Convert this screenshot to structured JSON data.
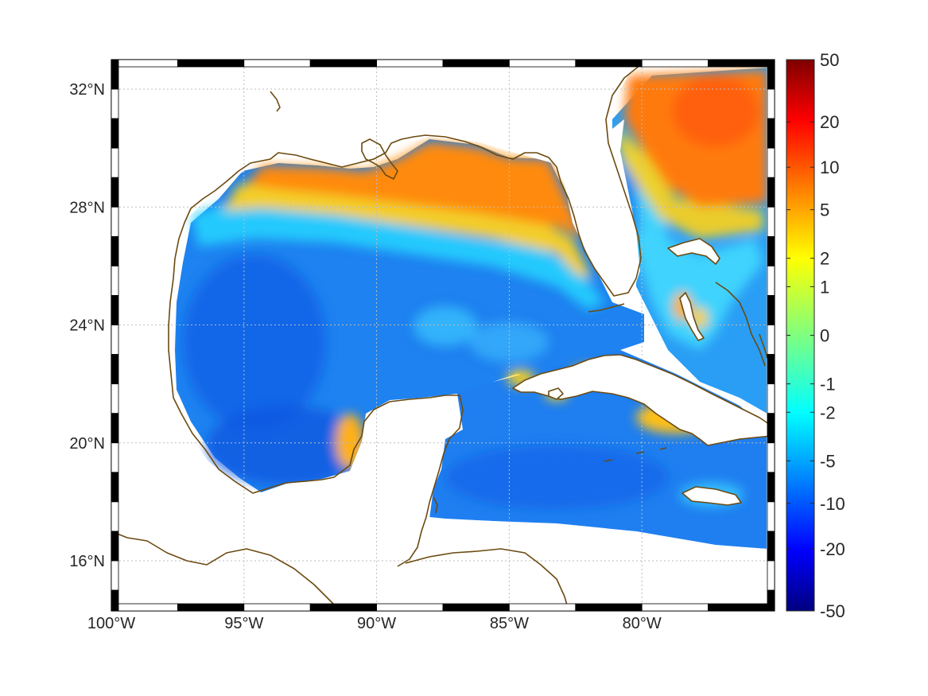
{
  "map": {
    "lon_range": [
      -100,
      -75
    ],
    "lat_range": [
      14.3,
      33
    ],
    "x_ticks": [
      {
        "lon": -100,
        "label": "100°W"
      },
      {
        "lon": -95,
        "label": "95°W"
      },
      {
        "lon": -90,
        "label": "90°W"
      },
      {
        "lon": -85,
        "label": "85°W"
      },
      {
        "lon": -80,
        "label": "80°W"
      }
    ],
    "y_ticks": [
      {
        "lat": 32,
        "label": "32°N"
      },
      {
        "lat": 28,
        "label": "28°N"
      },
      {
        "lat": 24,
        "label": "24°N"
      },
      {
        "lat": 20,
        "label": "20°N"
      },
      {
        "lat": 16,
        "label": "16°N"
      }
    ],
    "grid": true,
    "coastline_color": "#6b4a10",
    "colormap": "jet",
    "colorbar": {
      "placement": "right",
      "ticks": [
        {
          "value": 50,
          "label": "50"
        },
        {
          "value": 20,
          "label": "20"
        },
        {
          "value": 10,
          "label": "10"
        },
        {
          "value": 5,
          "label": "5"
        },
        {
          "value": 2,
          "label": "2"
        },
        {
          "value": 1,
          "label": "1"
        },
        {
          "value": 0,
          "label": "0"
        },
        {
          "value": -1,
          "label": "-1"
        },
        {
          "value": -2,
          "label": "-2"
        },
        {
          "value": -5,
          "label": "-5"
        },
        {
          "value": -10,
          "label": "-10"
        },
        {
          "value": -20,
          "label": "-20"
        },
        {
          "value": -50,
          "label": "-50"
        }
      ],
      "range": [
        -50,
        50
      ],
      "scale": "symmetric-log"
    },
    "field_regions": [
      {
        "name": "northern-gulf-shelf",
        "level": "5"
      },
      {
        "name": "florida-shelf",
        "level": "5"
      },
      {
        "name": "atlantic-north-east",
        "level": "5"
      },
      {
        "name": "central-gulf",
        "level": "-5"
      },
      {
        "name": "caribbean",
        "level": "-5"
      },
      {
        "name": "bahamas-banks",
        "level": "2"
      },
      {
        "name": "cuba-shelf",
        "level": "2"
      },
      {
        "name": "campeche-coast",
        "level": "2"
      }
    ]
  }
}
